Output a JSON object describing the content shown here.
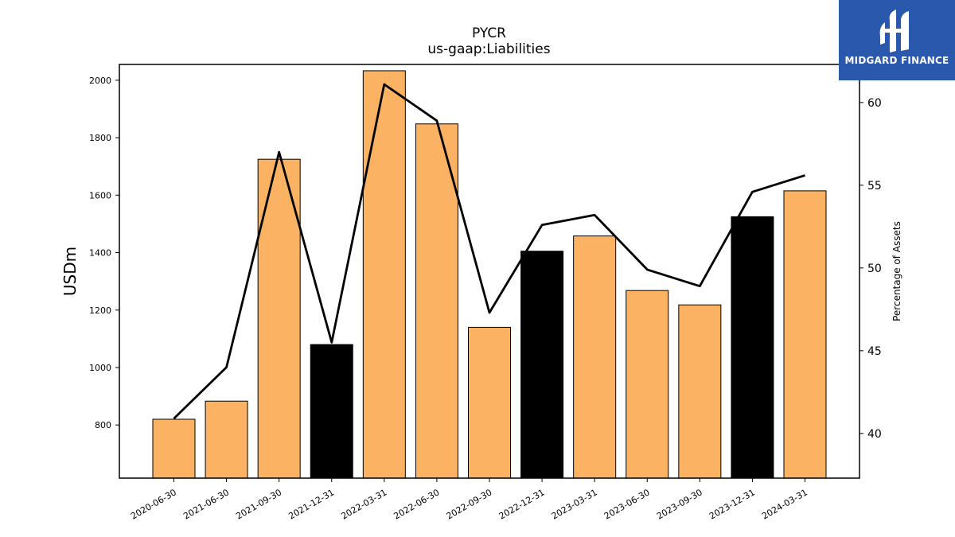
{
  "chart_data": {
    "type": "bar",
    "title": "PYCR",
    "subtitle": "us-gaap:Liabilities",
    "ylabel": "USDm",
    "y2label": "Percentage of Assets",
    "categories": [
      "2020-06-30",
      "2021-06-30",
      "2021-09-30",
      "2021-12-31",
      "2022-03-31",
      "2022-06-30",
      "2022-09-30",
      "2022-12-31",
      "2023-03-31",
      "2023-06-30",
      "2023-09-30",
      "2023-12-31",
      "2024-03-31"
    ],
    "series": [
      {
        "type": "bar",
        "values": [
          820,
          883,
          1725,
          1080,
          2033,
          1848,
          1140,
          1405,
          1458,
          1268,
          1218,
          1525,
          1615
        ],
        "colors": [
          "#fbb262",
          "#fbb262",
          "#fbb262",
          "#000000",
          "#fbb262",
          "#fbb262",
          "#fbb262",
          "#000000",
          "#fbb262",
          "#fbb262",
          "#fbb262",
          "#000000",
          "#fbb262"
        ]
      },
      {
        "type": "line",
        "axis": "right",
        "color": "#000000",
        "values": [
          40.9,
          44.0,
          57.0,
          45.5,
          61.1,
          58.9,
          47.3,
          52.6,
          53.2,
          49.9,
          48.9,
          54.6,
          55.6
        ]
      }
    ],
    "ylim": [
      615,
      2055
    ],
    "yticks": [
      800,
      1000,
      1200,
      1400,
      1600,
      1800,
      2000
    ],
    "y2lim": [
      37.3,
      62.3
    ],
    "y2ticks": [
      40,
      45,
      50,
      55,
      60
    ],
    "grid": false
  },
  "logo": {
    "text": "MIDGARD FINANCE"
  }
}
